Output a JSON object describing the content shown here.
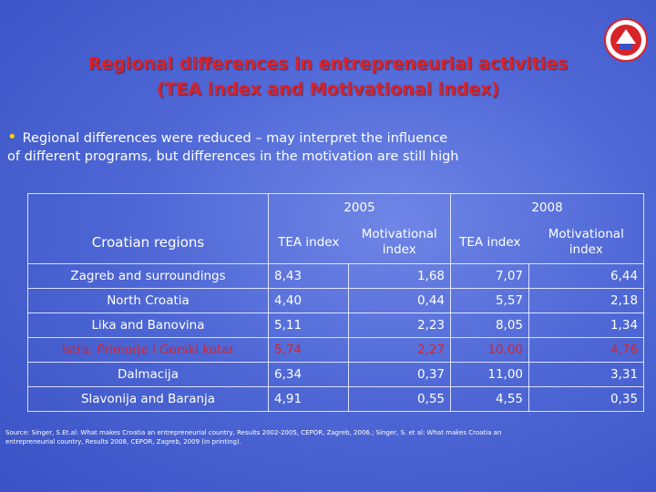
{
  "title": {
    "line1": "Regional differences in entrepreneurial activities",
    "line2": "(TEA index and Motivational index)"
  },
  "bullet": {
    "icon": "bullet-dot",
    "text": "Regional differences were reduced – may interpret the influence of different programs, but differences in the motivation are still high"
  },
  "table": {
    "row_header_label": "Croatian regions",
    "years": [
      "2005",
      "2008"
    ],
    "sub_headers": [
      "TEA index",
      "Motivational index",
      "TEA index",
      "Motivational index"
    ],
    "rows": [
      {
        "region": "Zagreb and surroundings",
        "tea_2005": "8,43",
        "mot_2005": "1,68",
        "tea_2008": "7,07",
        "mot_2008": "6,44",
        "highlight": false
      },
      {
        "region": "North Croatia",
        "tea_2005": "4,40",
        "mot_2005": "0,44",
        "tea_2008": "5,57",
        "mot_2008": "2,18",
        "highlight": false
      },
      {
        "region": "Lika and Banovina",
        "tea_2005": "5,11",
        "mot_2005": "2,23",
        "tea_2008": "8,05",
        "mot_2008": "1,34",
        "highlight": false
      },
      {
        "region": "Istra, Primorje i Gorski kotar",
        "tea_2005": "5,74",
        "mot_2005": "2,27",
        "tea_2008": "10,00",
        "mot_2008": "4,76",
        "highlight": true
      },
      {
        "region": "Dalmacija",
        "tea_2005": "6,34",
        "mot_2005": "0,37",
        "tea_2008": "11,00",
        "mot_2008": "3,31",
        "highlight": false
      },
      {
        "region": "Slavonija and Baranja",
        "tea_2005": "4,91",
        "mot_2005": "0,55",
        "tea_2008": "4,55",
        "mot_2008": "0,35",
        "highlight": false
      }
    ]
  },
  "source": "Source: Singer, S.Et.al: What makes Croatia an entrepreneurial country, Results 2002-2005, CEPOR, Zagreb, 2006.; Singer, S. et al: What makes Croatia an entrepreneurial country, Results 2008, CEPOR, Zagreb, 2009 (in printing).",
  "logo": {
    "icon": "university-seal-logo"
  },
  "colors": {
    "title": "#d8232a",
    "highlight_row": "#d8232a",
    "bullet": "#ffd400",
    "background": "#4f68d6"
  }
}
